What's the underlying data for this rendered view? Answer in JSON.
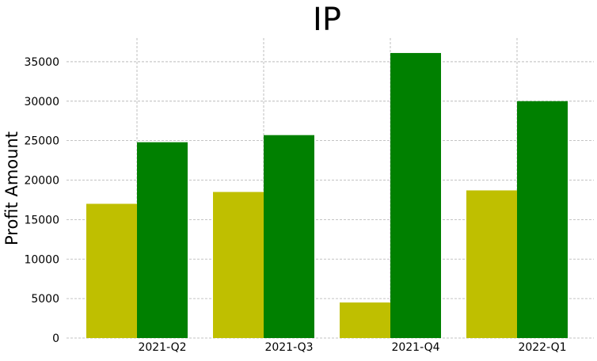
{
  "chart_data": {
    "type": "bar",
    "title": "IP",
    "xlabel": "",
    "ylabel": "Profit Amount",
    "categories": [
      "2021-Q2",
      "2021-Q3",
      "2021-Q4",
      "2022-Q1"
    ],
    "series": [
      {
        "color": "#bfbf00",
        "values": [
          17000,
          18500,
          4500,
          18700
        ]
      },
      {
        "color": "#008000",
        "values": [
          24800,
          25700,
          36100,
          30000
        ]
      }
    ],
    "ylim": [
      0,
      38000
    ],
    "yticks": [
      0,
      5000,
      10000,
      15000,
      20000,
      25000,
      30000,
      35000
    ],
    "grid": true
  }
}
